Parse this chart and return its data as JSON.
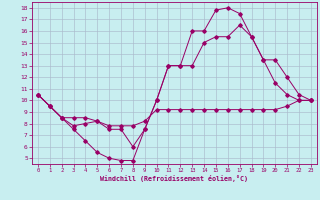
{
  "xlabel": "Windchill (Refroidissement éolien,°C)",
  "bg_color": "#c8eef0",
  "line_color": "#990066",
  "grid_color": "#aabbcc",
  "xlim": [
    -0.5,
    23.5
  ],
  "ylim": [
    4.5,
    18.5
  ],
  "xticks": [
    0,
    1,
    2,
    3,
    4,
    5,
    6,
    7,
    8,
    9,
    10,
    11,
    12,
    13,
    14,
    15,
    16,
    17,
    18,
    19,
    20,
    21,
    22,
    23
  ],
  "yticks": [
    5,
    6,
    7,
    8,
    9,
    10,
    11,
    12,
    13,
    14,
    15,
    16,
    17,
    18
  ],
  "series": [
    [
      10.5,
      9.5,
      8.5,
      7.5,
      6.5,
      5.5,
      5.0,
      4.8,
      4.8,
      7.5,
      10.0,
      13.0,
      13.0,
      16.0,
      16.0,
      17.8,
      18.0,
      17.5,
      15.5,
      13.5,
      11.5,
      10.5,
      10.0,
      10.0
    ],
    [
      10.5,
      9.5,
      8.5,
      7.8,
      8.0,
      8.2,
      7.8,
      7.8,
      7.8,
      8.2,
      9.2,
      9.2,
      9.2,
      9.2,
      9.2,
      9.2,
      9.2,
      9.2,
      9.2,
      9.2,
      9.2,
      9.5,
      10.0,
      10.0
    ],
    [
      10.5,
      9.5,
      8.5,
      8.5,
      8.5,
      8.2,
      7.5,
      7.5,
      6.0,
      7.5,
      10.0,
      13.0,
      13.0,
      13.0,
      15.0,
      15.5,
      15.5,
      16.5,
      15.5,
      13.5,
      13.5,
      12.0,
      10.5,
      10.0
    ]
  ]
}
